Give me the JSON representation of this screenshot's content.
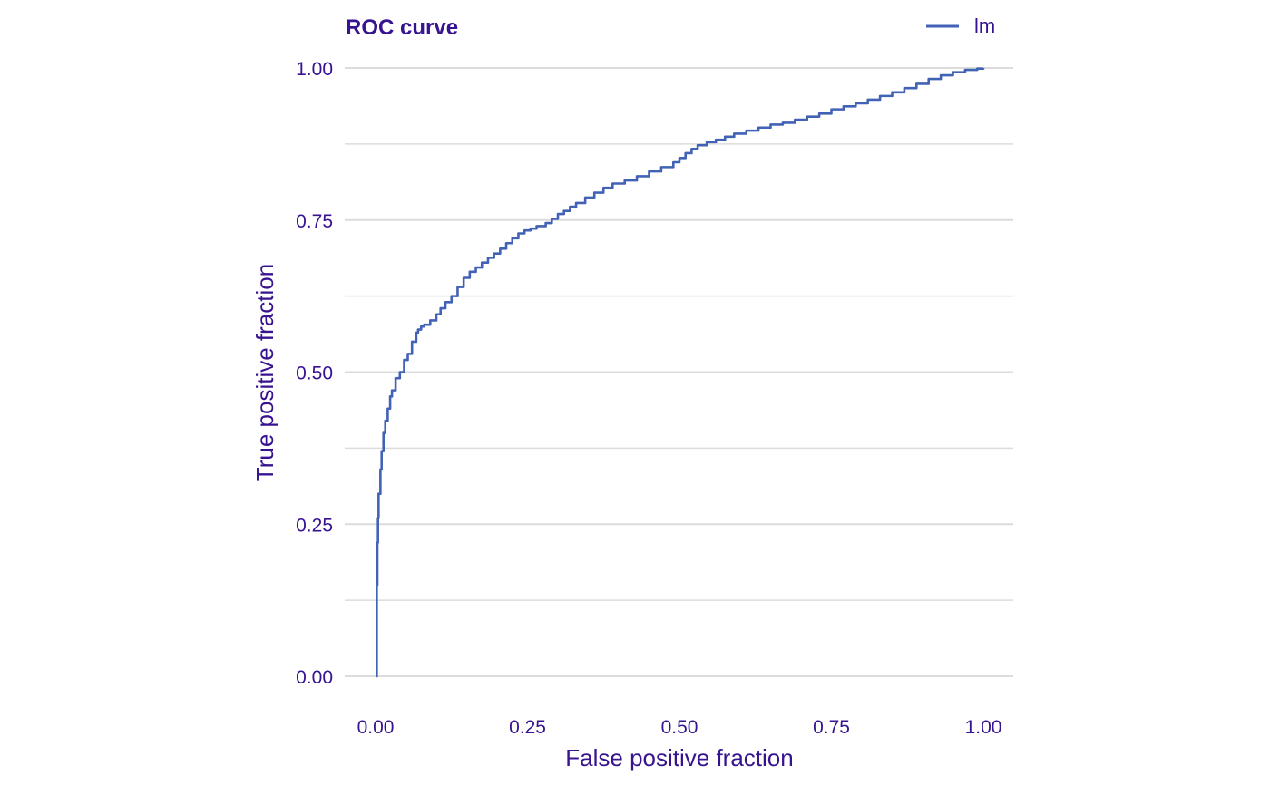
{
  "colors": {
    "text": "#37138f",
    "line": "#4262b5",
    "grid": "#dcdcdc",
    "background": "#ffffff"
  },
  "chart_data": {
    "type": "line",
    "title": "ROC curve",
    "xlabel": "False positive fraction",
    "ylabel": "True positive fraction",
    "xlim": [
      0,
      1
    ],
    "ylim": [
      0,
      1
    ],
    "x_ticks": [
      "0.00",
      "0.25",
      "0.50",
      "0.75",
      "1.00"
    ],
    "y_ticks": [
      "0.00",
      "0.25",
      "0.50",
      "0.75",
      "1.00"
    ],
    "grid": "horizontal",
    "legend": {
      "position": "top-right",
      "entries": [
        "lm"
      ]
    },
    "series": [
      {
        "name": "lm",
        "x": [
          0.0,
          0.002,
          0.003,
          0.004,
          0.005,
          0.008,
          0.01,
          0.013,
          0.016,
          0.02,
          0.024,
          0.027,
          0.033,
          0.04,
          0.047,
          0.053,
          0.06,
          0.067,
          0.07,
          0.075,
          0.08,
          0.09,
          0.1,
          0.107,
          0.115,
          0.125,
          0.135,
          0.145,
          0.155,
          0.165,
          0.175,
          0.185,
          0.195,
          0.205,
          0.215,
          0.225,
          0.235,
          0.245,
          0.255,
          0.265,
          0.28,
          0.29,
          0.3,
          0.31,
          0.32,
          0.33,
          0.345,
          0.36,
          0.375,
          0.39,
          0.41,
          0.43,
          0.45,
          0.47,
          0.49,
          0.5,
          0.51,
          0.52,
          0.53,
          0.545,
          0.56,
          0.575,
          0.59,
          0.61,
          0.63,
          0.65,
          0.67,
          0.69,
          0.71,
          0.73,
          0.75,
          0.77,
          0.79,
          0.81,
          0.83,
          0.85,
          0.87,
          0.89,
          0.91,
          0.93,
          0.95,
          0.97,
          0.99,
          1.0
        ],
        "y": [
          0.0,
          0.15,
          0.22,
          0.26,
          0.3,
          0.34,
          0.37,
          0.4,
          0.42,
          0.44,
          0.46,
          0.47,
          0.49,
          0.5,
          0.52,
          0.53,
          0.55,
          0.565,
          0.57,
          0.575,
          0.578,
          0.585,
          0.595,
          0.605,
          0.615,
          0.625,
          0.64,
          0.655,
          0.665,
          0.672,
          0.68,
          0.688,
          0.695,
          0.703,
          0.712,
          0.72,
          0.728,
          0.733,
          0.736,
          0.74,
          0.745,
          0.752,
          0.76,
          0.765,
          0.772,
          0.778,
          0.787,
          0.795,
          0.803,
          0.81,
          0.815,
          0.822,
          0.83,
          0.837,
          0.845,
          0.852,
          0.86,
          0.867,
          0.873,
          0.878,
          0.882,
          0.887,
          0.892,
          0.897,
          0.902,
          0.907,
          0.91,
          0.915,
          0.92,
          0.925,
          0.932,
          0.937,
          0.942,
          0.948,
          0.954,
          0.96,
          0.967,
          0.974,
          0.982,
          0.988,
          0.993,
          0.997,
          0.999,
          1.0
        ]
      }
    ]
  }
}
